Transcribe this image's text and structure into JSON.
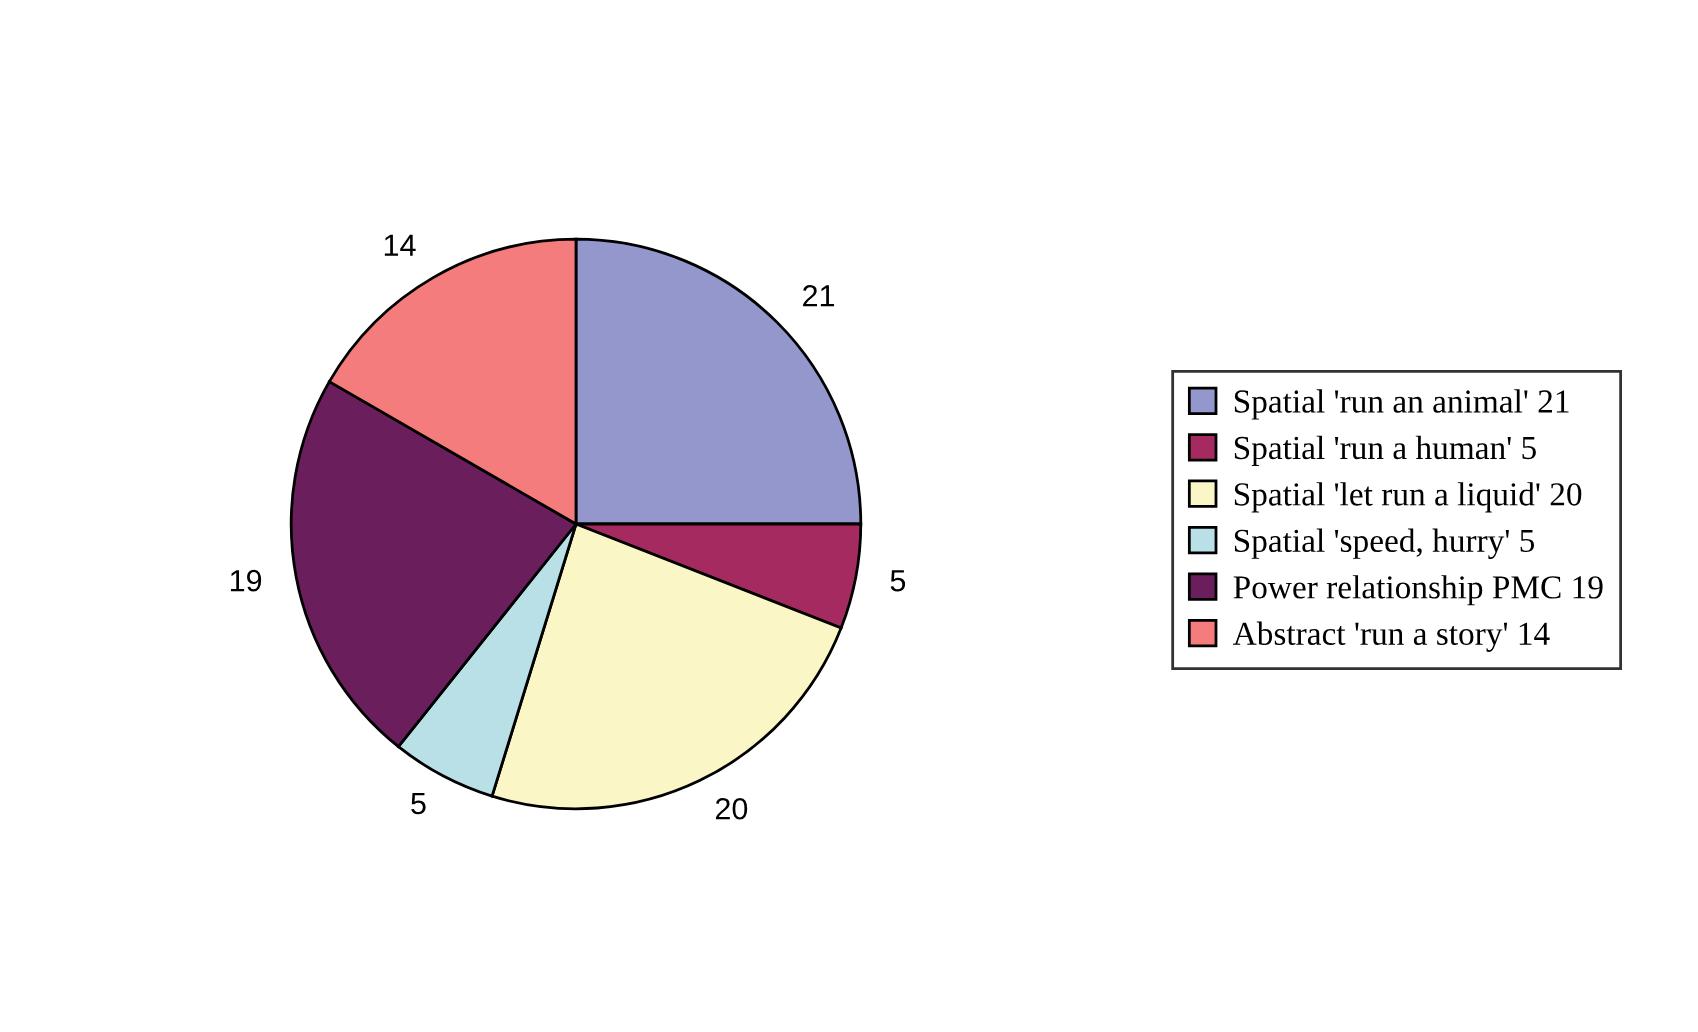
{
  "chart_data": {
    "type": "pie",
    "categories": [
      "Spatial 'run an animal' 21",
      "Spatial 'run a human' 5",
      "Spatial 'let run a liquid' 20",
      "Spatial 'speed, hurry' 5",
      "Power relationship PMC 19",
      "Abstract 'run a story' 14"
    ],
    "values": [
      21,
      5,
      20,
      5,
      19,
      14
    ],
    "colors": [
      "#9497cc",
      "#a52a5f",
      "#fbf6c6",
      "#b8e0e6",
      "#6a1f5c",
      "#f47c7c"
    ],
    "data_labels": true,
    "legend": "right"
  }
}
